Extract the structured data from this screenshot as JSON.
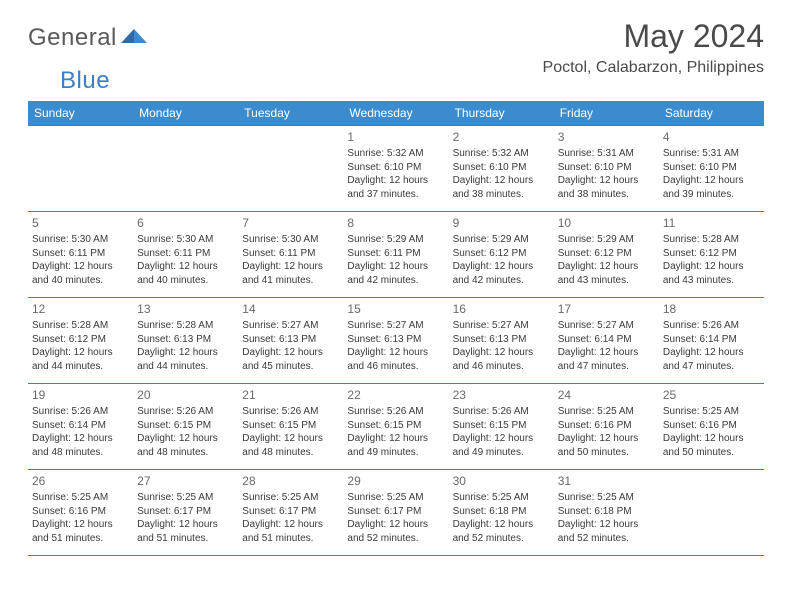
{
  "logo": {
    "text1": "General",
    "text2": "Blue"
  },
  "title": "May 2024",
  "location": "Poctol, Calabarzon, Philippines",
  "colors": {
    "header_bg": "#3b8bcf",
    "header_text": "#ffffff",
    "border": "#3b7fc4",
    "text": "#3a3a3a",
    "title_text": "#4a4a4a",
    "logo_gray": "#5a5a5a",
    "logo_blue": "#3b7fc4"
  },
  "weekdays": [
    "Sunday",
    "Monday",
    "Tuesday",
    "Wednesday",
    "Thursday",
    "Friday",
    "Saturday"
  ],
  "weeks": [
    [
      null,
      null,
      null,
      {
        "n": "1",
        "sr": "5:32 AM",
        "ss": "6:10 PM",
        "dl1": "12 hours",
        "dl2": "and 37 minutes."
      },
      {
        "n": "2",
        "sr": "5:32 AM",
        "ss": "6:10 PM",
        "dl1": "12 hours",
        "dl2": "and 38 minutes."
      },
      {
        "n": "3",
        "sr": "5:31 AM",
        "ss": "6:10 PM",
        "dl1": "12 hours",
        "dl2": "and 38 minutes."
      },
      {
        "n": "4",
        "sr": "5:31 AM",
        "ss": "6:10 PM",
        "dl1": "12 hours",
        "dl2": "and 39 minutes."
      }
    ],
    [
      {
        "n": "5",
        "sr": "5:30 AM",
        "ss": "6:11 PM",
        "dl1": "12 hours",
        "dl2": "and 40 minutes."
      },
      {
        "n": "6",
        "sr": "5:30 AM",
        "ss": "6:11 PM",
        "dl1": "12 hours",
        "dl2": "and 40 minutes."
      },
      {
        "n": "7",
        "sr": "5:30 AM",
        "ss": "6:11 PM",
        "dl1": "12 hours",
        "dl2": "and 41 minutes."
      },
      {
        "n": "8",
        "sr": "5:29 AM",
        "ss": "6:11 PM",
        "dl1": "12 hours",
        "dl2": "and 42 minutes."
      },
      {
        "n": "9",
        "sr": "5:29 AM",
        "ss": "6:12 PM",
        "dl1": "12 hours",
        "dl2": "and 42 minutes."
      },
      {
        "n": "10",
        "sr": "5:29 AM",
        "ss": "6:12 PM",
        "dl1": "12 hours",
        "dl2": "and 43 minutes."
      },
      {
        "n": "11",
        "sr": "5:28 AM",
        "ss": "6:12 PM",
        "dl1": "12 hours",
        "dl2": "and 43 minutes."
      }
    ],
    [
      {
        "n": "12",
        "sr": "5:28 AM",
        "ss": "6:12 PM",
        "dl1": "12 hours",
        "dl2": "and 44 minutes."
      },
      {
        "n": "13",
        "sr": "5:28 AM",
        "ss": "6:13 PM",
        "dl1": "12 hours",
        "dl2": "and 44 minutes."
      },
      {
        "n": "14",
        "sr": "5:27 AM",
        "ss": "6:13 PM",
        "dl1": "12 hours",
        "dl2": "and 45 minutes."
      },
      {
        "n": "15",
        "sr": "5:27 AM",
        "ss": "6:13 PM",
        "dl1": "12 hours",
        "dl2": "and 46 minutes."
      },
      {
        "n": "16",
        "sr": "5:27 AM",
        "ss": "6:13 PM",
        "dl1": "12 hours",
        "dl2": "and 46 minutes."
      },
      {
        "n": "17",
        "sr": "5:27 AM",
        "ss": "6:14 PM",
        "dl1": "12 hours",
        "dl2": "and 47 minutes."
      },
      {
        "n": "18",
        "sr": "5:26 AM",
        "ss": "6:14 PM",
        "dl1": "12 hours",
        "dl2": "and 47 minutes."
      }
    ],
    [
      {
        "n": "19",
        "sr": "5:26 AM",
        "ss": "6:14 PM",
        "dl1": "12 hours",
        "dl2": "and 48 minutes."
      },
      {
        "n": "20",
        "sr": "5:26 AM",
        "ss": "6:15 PM",
        "dl1": "12 hours",
        "dl2": "and 48 minutes."
      },
      {
        "n": "21",
        "sr": "5:26 AM",
        "ss": "6:15 PM",
        "dl1": "12 hours",
        "dl2": "and 48 minutes."
      },
      {
        "n": "22",
        "sr": "5:26 AM",
        "ss": "6:15 PM",
        "dl1": "12 hours",
        "dl2": "and 49 minutes."
      },
      {
        "n": "23",
        "sr": "5:26 AM",
        "ss": "6:15 PM",
        "dl1": "12 hours",
        "dl2": "and 49 minutes."
      },
      {
        "n": "24",
        "sr": "5:25 AM",
        "ss": "6:16 PM",
        "dl1": "12 hours",
        "dl2": "and 50 minutes."
      },
      {
        "n": "25",
        "sr": "5:25 AM",
        "ss": "6:16 PM",
        "dl1": "12 hours",
        "dl2": "and 50 minutes."
      }
    ],
    [
      {
        "n": "26",
        "sr": "5:25 AM",
        "ss": "6:16 PM",
        "dl1": "12 hours",
        "dl2": "and 51 minutes."
      },
      {
        "n": "27",
        "sr": "5:25 AM",
        "ss": "6:17 PM",
        "dl1": "12 hours",
        "dl2": "and 51 minutes."
      },
      {
        "n": "28",
        "sr": "5:25 AM",
        "ss": "6:17 PM",
        "dl1": "12 hours",
        "dl2": "and 51 minutes."
      },
      {
        "n": "29",
        "sr": "5:25 AM",
        "ss": "6:17 PM",
        "dl1": "12 hours",
        "dl2": "and 52 minutes."
      },
      {
        "n": "30",
        "sr": "5:25 AM",
        "ss": "6:18 PM",
        "dl1": "12 hours",
        "dl2": "and 52 minutes."
      },
      {
        "n": "31",
        "sr": "5:25 AM",
        "ss": "6:18 PM",
        "dl1": "12 hours",
        "dl2": "and 52 minutes."
      },
      null
    ]
  ],
  "labels": {
    "sunrise": "Sunrise: ",
    "sunset": "Sunset: ",
    "daylight": "Daylight: "
  }
}
